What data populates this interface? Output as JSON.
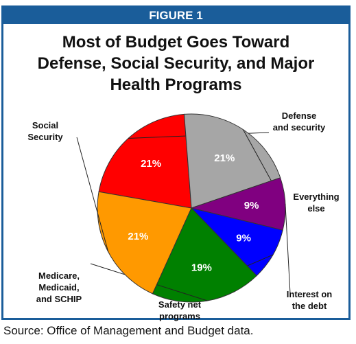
{
  "figure_label": "FIGURE 1",
  "source": "Source: Office of Management and Budget data.",
  "colors": {
    "frame": "#1a5d9a",
    "defense": "#ff0000",
    "everything_else": "#a6a6a6",
    "interest": "#800080",
    "safety_net": "#0000ff",
    "medicare": "#008000",
    "social_security": "#ff9900"
  },
  "chart_data": {
    "type": "pie",
    "title_lines": [
      "Most of Budget Goes Toward",
      "Defense, Social Security, and Major",
      "Health Programs"
    ],
    "slices": [
      {
        "label_lines": [
          "Defense",
          "and security"
        ],
        "value": 21,
        "value_label": "21%",
        "color": "#ff0000",
        "text_color": "#ffffff"
      },
      {
        "label_lines": [
          "Everything",
          "else"
        ],
        "value": 21,
        "value_label": "21%",
        "color": "#a6a6a6",
        "text_color": "#ffffff"
      },
      {
        "label_lines": [
          "Interest on",
          "the debt"
        ],
        "value": 9,
        "value_label": "9%",
        "color": "#800080",
        "text_color": "#ffffff"
      },
      {
        "label_lines": [
          "Safety net",
          "programs"
        ],
        "value": 9,
        "value_label": "9%",
        "color": "#0000ff",
        "text_color": "#ffffff"
      },
      {
        "label_lines": [
          "Medicare,",
          "Medicaid,",
          "and SCHIP"
        ],
        "value": 19,
        "value_label": "19%",
        "color": "#008000",
        "text_color": "#ffffff"
      },
      {
        "label_lines": [
          "Social",
          "Security"
        ],
        "value": 21,
        "value_label": "21%",
        "color": "#ff9900",
        "text_color": "#ffffff"
      }
    ]
  }
}
